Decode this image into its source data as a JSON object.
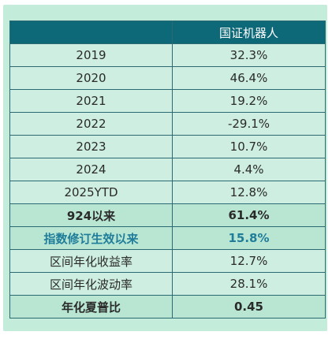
{
  "table": {
    "header": {
      "col1": "",
      "col2": "国证机器人"
    },
    "rows": [
      {
        "label": "2019",
        "value": "32.3%"
      },
      {
        "label": "2020",
        "value": "46.4%"
      },
      {
        "label": "2021",
        "value": "19.2%"
      },
      {
        "label": "2022",
        "value": "-29.1%"
      },
      {
        "label": "2023",
        "value": "10.7%"
      },
      {
        "label": "2024",
        "value": "4.4%"
      },
      {
        "label": "2025YTD",
        "value": "12.8%"
      },
      {
        "label": "924以来",
        "value": "61.4%"
      },
      {
        "label": "指数修订生效以来",
        "value": "15.8%"
      },
      {
        "label": "区间年化收益率",
        "value": "12.7%"
      },
      {
        "label": "区间年化波动率",
        "value": "28.1%"
      },
      {
        "label": "年化夏普比",
        "value": "0.45"
      }
    ]
  },
  "colors": {
    "background": "#c4ecdb",
    "header": "#0d6878",
    "border": "#2b6a73",
    "highlight_text": "#1f7d9a"
  }
}
